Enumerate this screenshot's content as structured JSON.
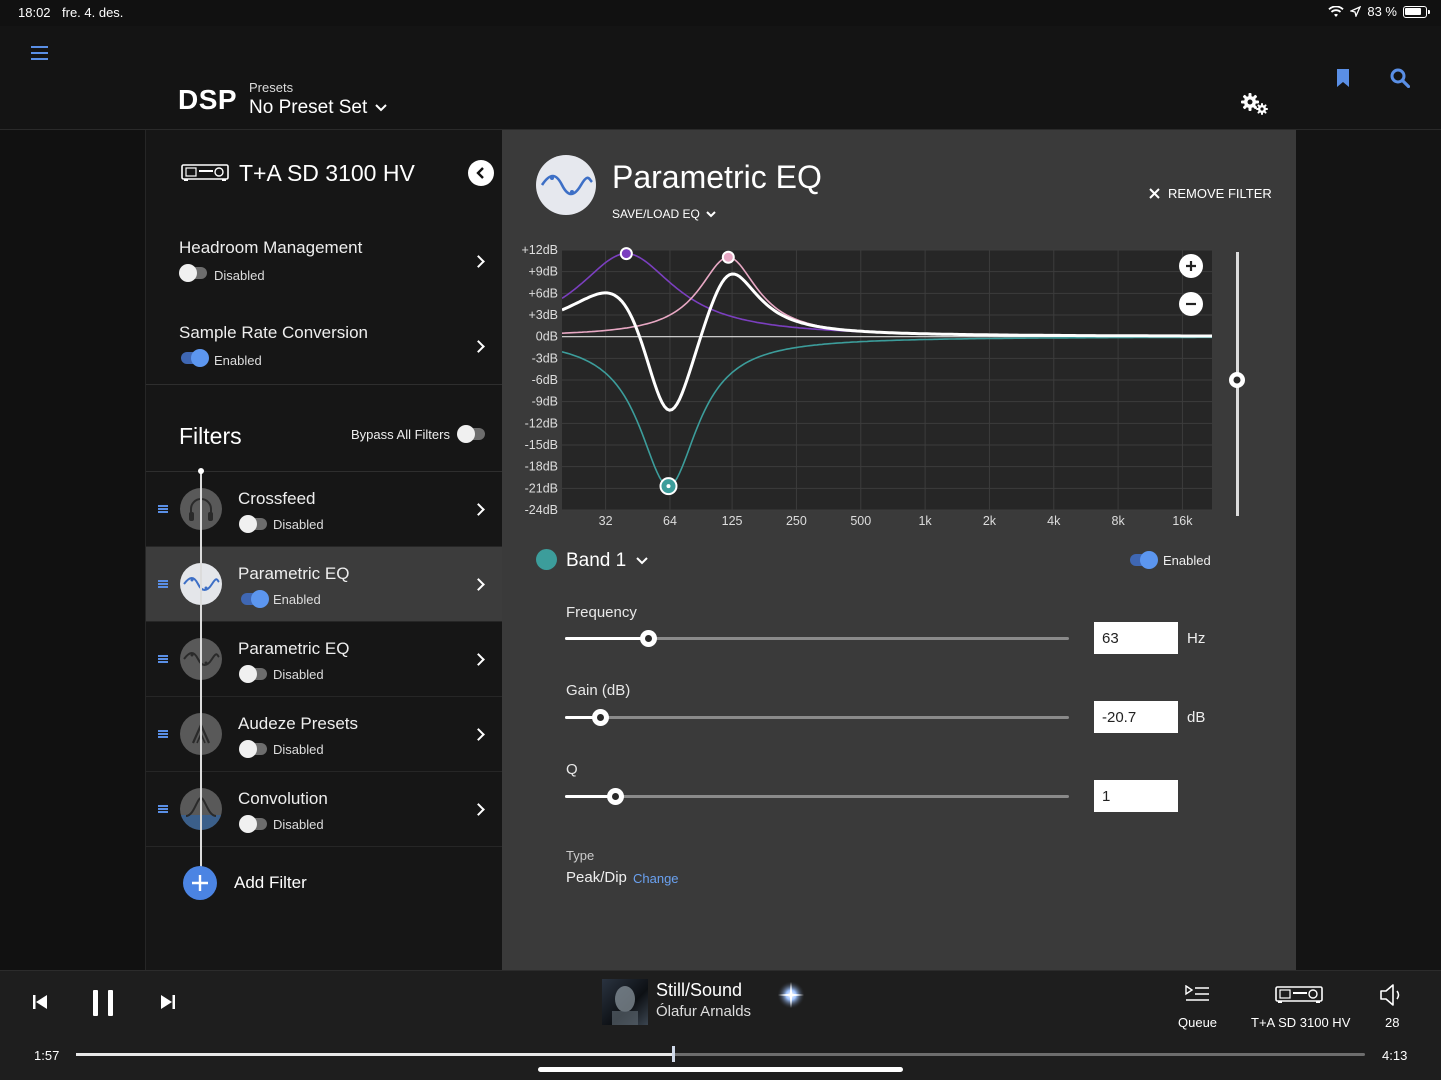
{
  "status_bar": {
    "time": "18:02",
    "date": "fre. 4. des.",
    "battery": "83 %"
  },
  "header": {
    "title": "DSP",
    "presets_label": "Presets",
    "preset_value": "No Preset Set"
  },
  "sidebar": {
    "device_name": "T+A SD 3100 HV",
    "settings": [
      {
        "title": "Headroom Management",
        "state": "Disabled",
        "enabled": false
      },
      {
        "title": "Sample Rate Conversion",
        "state": "Enabled",
        "enabled": true
      }
    ],
    "filters_title": "Filters",
    "bypass_label": "Bypass All Filters",
    "filters": [
      {
        "name": "Crossfeed",
        "state": "Disabled",
        "icon": "headphones-icon"
      },
      {
        "name": "Parametric EQ",
        "state": "Enabled",
        "icon": "eq-wave-icon"
      },
      {
        "name": "Parametric EQ",
        "state": "Disabled",
        "icon": "eq-wave-icon"
      },
      {
        "name": "Audeze Presets",
        "state": "Disabled",
        "icon": "audeze-logo-icon"
      },
      {
        "name": "Convolution",
        "state": "Disabled",
        "icon": "convolution-icon"
      }
    ],
    "add_filter": "Add Filter"
  },
  "editor": {
    "title": "Parametric EQ",
    "save_load": "SAVE/LOAD EQ",
    "remove_filter": "REMOVE FILTER",
    "band_label": "Band 1",
    "band_enabled": "Enabled",
    "band_color": "#3c9d9b",
    "params": [
      {
        "label": "Frequency",
        "value": "63",
        "unit": "Hz",
        "fraction": 0.165
      },
      {
        "label": "Gain (dB)",
        "value": "-20.7",
        "unit": "dB",
        "fraction": 0.07
      },
      {
        "label": "Q",
        "value": "1",
        "unit": "",
        "fraction": 0.1
      }
    ],
    "type_label": "Type",
    "type_value": "Peak/Dip",
    "type_change": "Change"
  },
  "chart_data": {
    "type": "line",
    "y_ticks": [
      "+12dB",
      "+9dB",
      "+6dB",
      "+3dB",
      "0dB",
      "-3dB",
      "-6dB",
      "-9dB",
      "-12dB",
      "-15dB",
      "-18dB",
      "-21dB",
      "-24dB"
    ],
    "x_ticks": [
      "32",
      "64",
      "125",
      "250",
      "500",
      "1k",
      "2k",
      "4k",
      "8k",
      "16k"
    ],
    "ylim": [
      -24,
      12
    ],
    "x_scale": "log",
    "grid": true,
    "bands": [
      {
        "freq": 63,
        "gain": -20.7,
        "q": 1,
        "color": "#3c9d9b"
      },
      {
        "freq": 40,
        "gain": 11.5,
        "q": 0.6,
        "color": "#7b3fbf"
      },
      {
        "freq": 120,
        "gain": 11,
        "q": 1,
        "color": "#e8a8c4"
      }
    ],
    "combined_color": "#ffffff"
  },
  "player": {
    "track_title": "Still/Sound",
    "artist": "Ólafur Arnalds",
    "queue_label": "Queue",
    "device_label": "T+A SD 3100 HV",
    "volume": "28",
    "elapsed": "1:57",
    "duration": "4:13",
    "progress_fraction": 0.463
  }
}
